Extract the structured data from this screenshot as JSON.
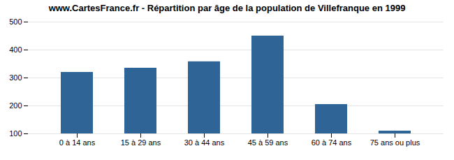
{
  "chart_data": {
    "type": "bar",
    "title": "www.CartesFrance.fr - Répartition par âge de la population de Villefranque en 1999",
    "categories": [
      "0 à 14 ans",
      "15 à 29 ans",
      "30 à 44 ans",
      "45 à 59 ans",
      "60 à 74 ans",
      "75 ans ou plus"
    ],
    "values": [
      320,
      335,
      358,
      450,
      205,
      110
    ],
    "color": "#2e6496",
    "ylim": [
      100,
      500
    ],
    "yticks": [
      100,
      200,
      300,
      400,
      500
    ],
    "grid": true
  }
}
